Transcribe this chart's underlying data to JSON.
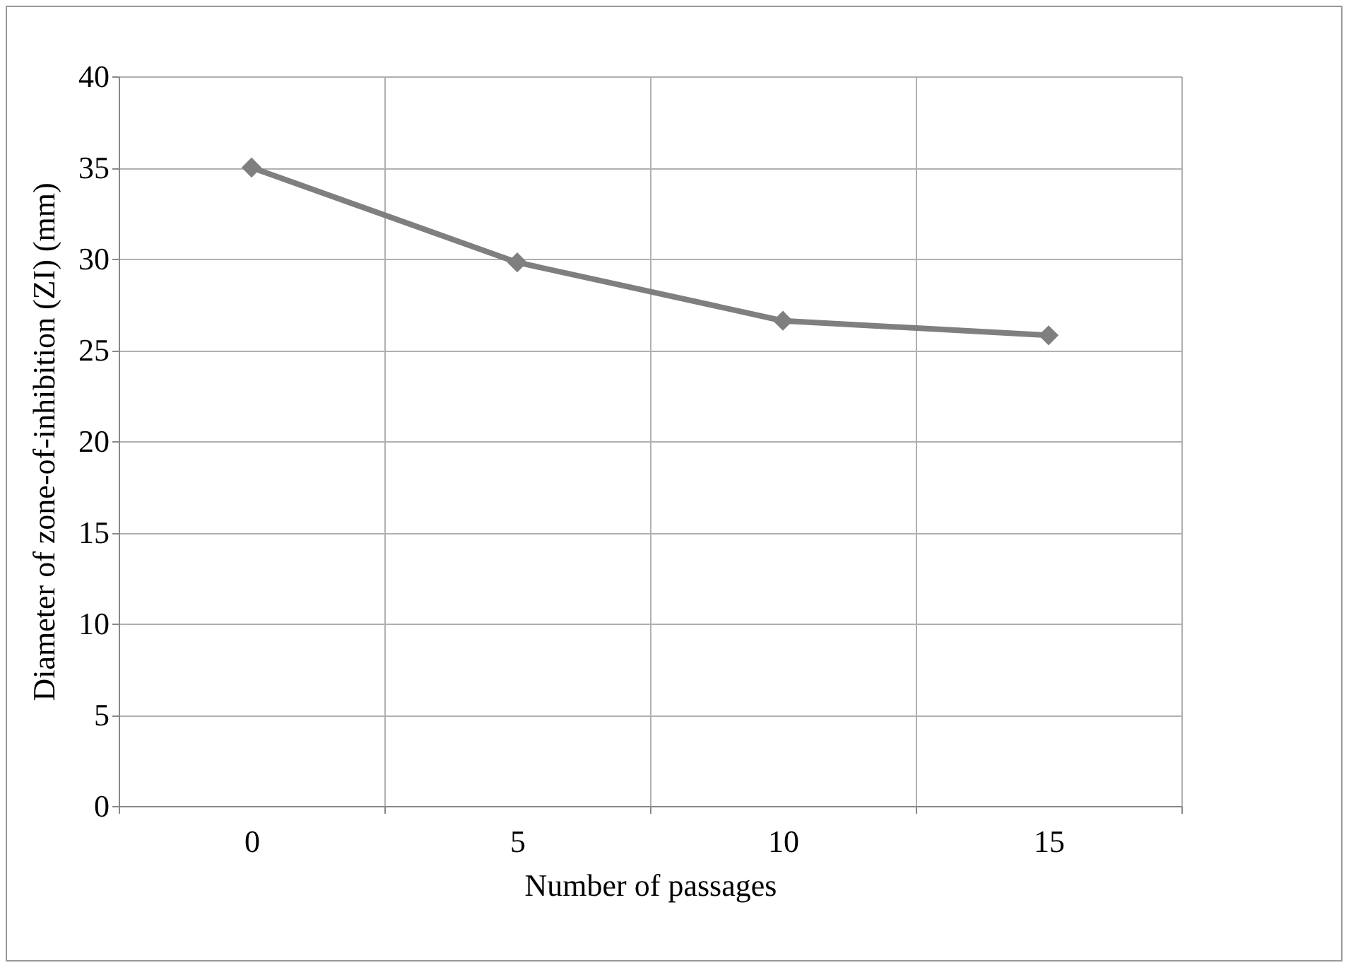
{
  "chart_data": {
    "type": "line",
    "xlabel": "Number of passages",
    "ylabel": "Diameter of zone-of-inhibition (ZI) (mm)",
    "categories": [
      "0",
      "5",
      "10",
      "15"
    ],
    "series": [
      {
        "color": "#7f7f7f",
        "values": [
          35,
          29.8,
          26.6,
          25.8
        ]
      }
    ],
    "ylim": [
      0,
      40
    ],
    "yticks": [
      0,
      5,
      10,
      15,
      20,
      25,
      30,
      35,
      40
    ],
    "grid": true,
    "marker": "diamond"
  }
}
